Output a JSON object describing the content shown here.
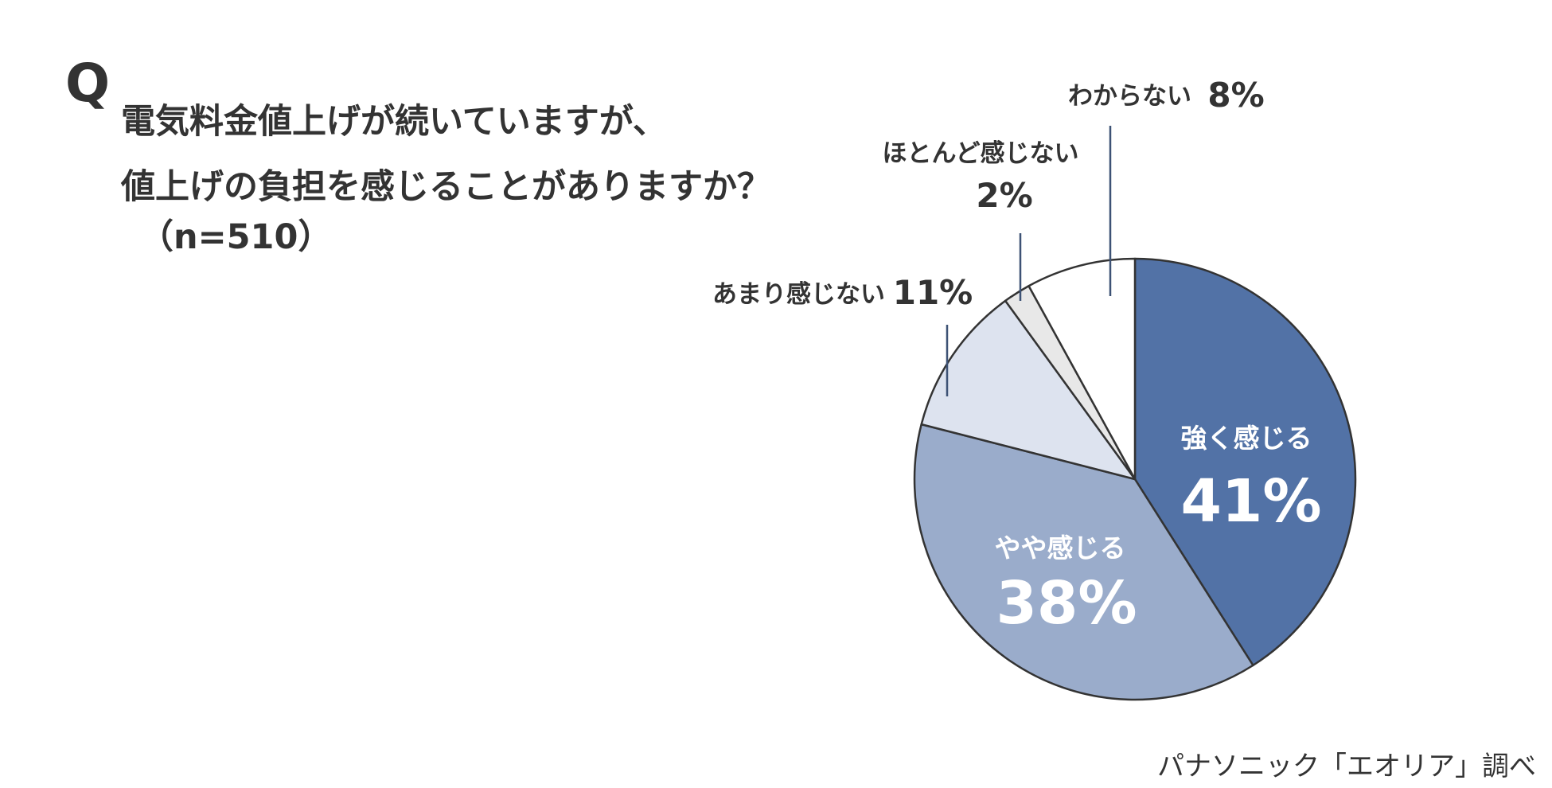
{
  "question": {
    "mark": "Q",
    "lines": [
      "電気料金値上げが続いていますが、",
      "値上げの負担を感じることがありますか？"
    ],
    "sample": "（n=510）"
  },
  "source": "パナソニック「エオリア」調べ",
  "chart_data": {
    "type": "pie",
    "title": "電気料金値上げが続いていますが、値上げの負担を感じることがありますか？",
    "start_angle": "12 o'clock",
    "direction": "clockwise",
    "slices": [
      {
        "label": "強く感じる",
        "value": 41,
        "display": "41%",
        "color": "#5272a6"
      },
      {
        "label": "やや感じる",
        "value": 38,
        "display": "38%",
        "color": "#9aaccb"
      },
      {
        "label": "あまり感じない",
        "value": 11,
        "display": "11%",
        "color": "#dde3ef"
      },
      {
        "label": "ほとんど感じない",
        "value": 2,
        "display": "2%",
        "color": "#e8e8e8"
      },
      {
        "label": "わからない",
        "value": 8,
        "display": "8%",
        "color": "#ffffff"
      }
    ]
  }
}
